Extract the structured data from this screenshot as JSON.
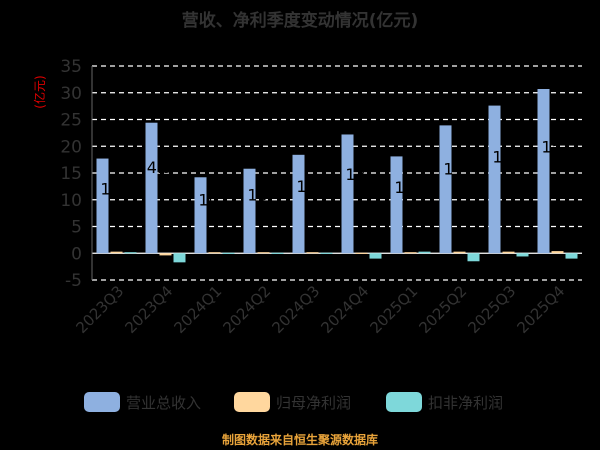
{
  "chart_data": {
    "type": "bar",
    "title": "营收、净利季度变动情况(亿元)",
    "ylabel": "(亿元)",
    "ylim": [
      -5,
      35
    ],
    "yticks": [
      -5,
      0,
      5,
      10,
      15,
      20,
      25,
      30,
      35
    ],
    "grid": true,
    "legend_position": "bottom",
    "categories": [
      "2023Q3",
      "2023Q4",
      "2024Q1",
      "2024Q2",
      "2024Q3",
      "2024Q4",
      "2025Q1",
      "2025Q2",
      "2025Q3",
      "2025Q4"
    ],
    "series": [
      {
        "name": "营业总收入",
        "color": "#8eb0e0",
        "values": [
          17.7,
          24.4,
          14.2,
          15.8,
          18.4,
          22.2,
          18.1,
          23.9,
          27.6,
          30.7
        ]
      },
      {
        "name": "归母净利润",
        "color": "#ffd79e",
        "values": [
          0.3,
          -0.4,
          0.2,
          0.2,
          0.2,
          0.1,
          0.2,
          0.3,
          0.3,
          0.4
        ]
      },
      {
        "name": "扣非净利润",
        "color": "#7ed8da",
        "values": [
          0.2,
          -1.7,
          0.1,
          0.1,
          0.1,
          -1.0,
          0.3,
          -1.5,
          -0.6,
          -1.0
        ]
      }
    ],
    "data_labels": [
      "16",
      "4.3",
      "10",
      "18",
      "12",
      "12",
      "10",
      "17",
      "16",
      "15"
    ]
  },
  "footer": {
    "source": "制图数据来自恒生聚源数据库"
  }
}
